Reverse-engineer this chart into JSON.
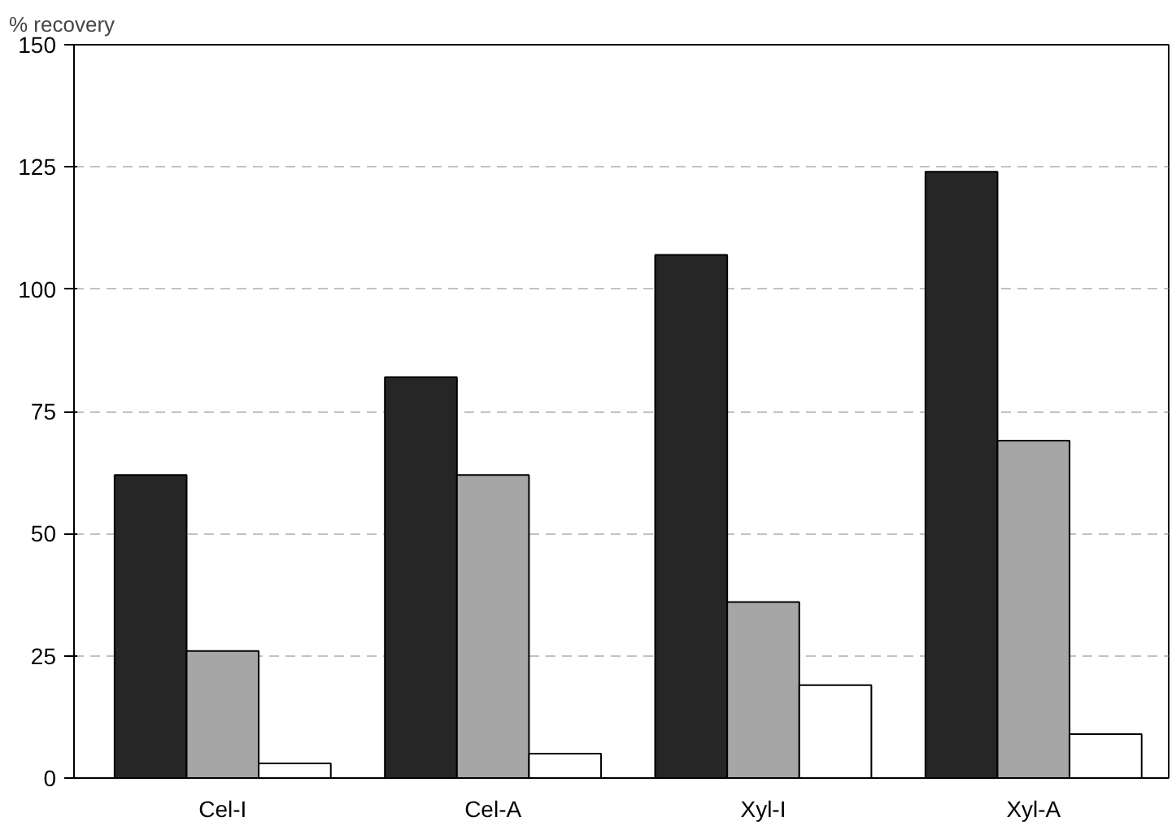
{
  "chart_data": {
    "type": "bar",
    "ylabel": "% recovery",
    "categories": [
      "Cel-I",
      "Cel-A",
      "Xyl-I",
      "Xyl-A"
    ],
    "series": [
      {
        "color": "#262626",
        "values": [
          62,
          82,
          107,
          124
        ]
      },
      {
        "color": "#a6a6a6",
        "values": [
          26,
          62,
          36,
          69
        ]
      },
      {
        "color": "#ffffff",
        "values": [
          3,
          5,
          19,
          9
        ]
      }
    ],
    "ylim": [
      0,
      150
    ],
    "yticks": [
      0,
      25,
      50,
      75,
      100,
      125,
      150
    ],
    "grid": "y"
  }
}
